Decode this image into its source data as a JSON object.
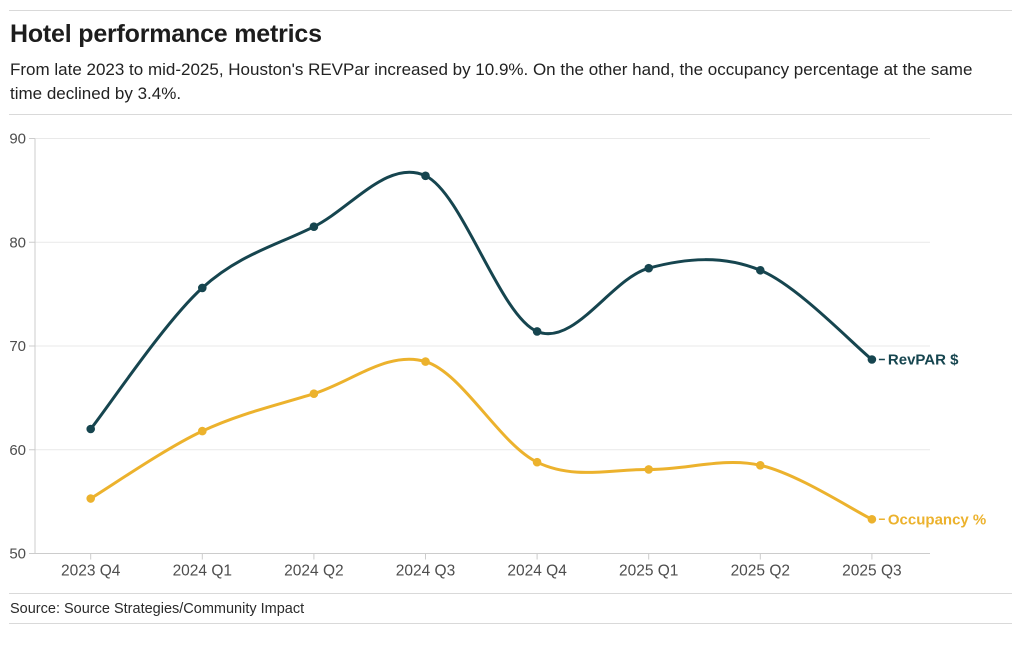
{
  "header": {
    "title": "Hotel performance metrics",
    "subtitle": "From late 2023 to mid-2025, Houston's REVPar increased by 10.9%. On the other hand, the occupancy percentage at the same time declined by 3.4%."
  },
  "footer": {
    "source": "Source: Source Strategies/Community Impact"
  },
  "colors": {
    "revpar": "#16454f",
    "occupancy": "#ecb22d",
    "gridline": "#e9e9e9",
    "axis": "#cccccc",
    "tick_label": "#4d4d4d"
  },
  "chart_data": {
    "type": "line",
    "title": "Hotel performance metrics",
    "categories": [
      "2023 Q4",
      "2024 Q1",
      "2024 Q2",
      "2024 Q3",
      "2024 Q4",
      "2025 Q1",
      "2025 Q2",
      "2025 Q3"
    ],
    "series": [
      {
        "name": "RevPAR $",
        "color": "#16454f",
        "values": [
          62.0,
          75.6,
          81.5,
          86.4,
          71.4,
          77.5,
          77.3,
          68.7
        ]
      },
      {
        "name": "Occupancy %",
        "color": "#ecb22d",
        "values": [
          55.3,
          61.8,
          65.4,
          68.5,
          58.8,
          58.1,
          58.5,
          53.3
        ]
      }
    ],
    "xlabel": "",
    "ylabel": "",
    "ylim": [
      50,
      90
    ],
    "yticks": [
      50,
      60,
      70,
      80,
      90
    ],
    "grid": true,
    "legend_position": "end-of-line-labels"
  }
}
